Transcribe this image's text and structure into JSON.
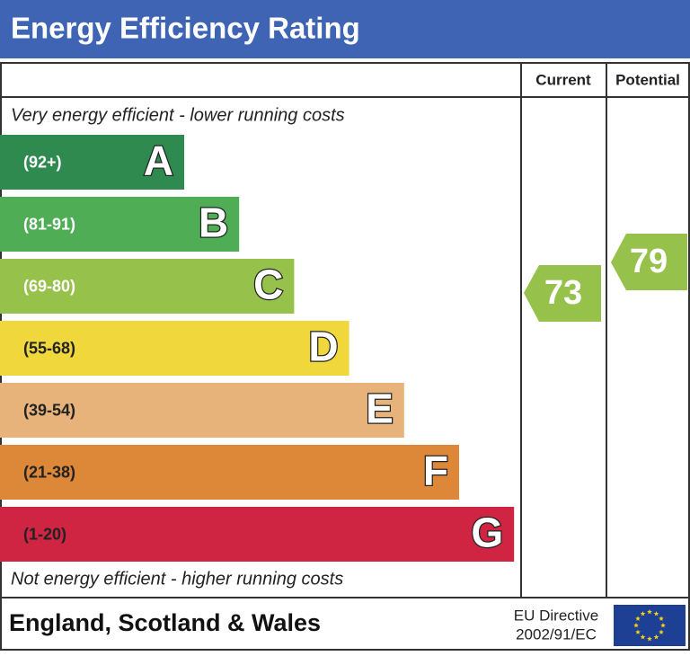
{
  "header": {
    "title": "Energy Efficiency Rating"
  },
  "columns": {
    "current": "Current",
    "potential": "Potential"
  },
  "top_note": "Very energy efficient - lower running costs",
  "bottom_note": "Not energy efficient - higher running costs",
  "bands": [
    {
      "range": "(92+)",
      "letter": "A",
      "color": "#2f8a50"
    },
    {
      "range": "(81-91)",
      "letter": "B",
      "color": "#4fad55"
    },
    {
      "range": "(69-80)",
      "letter": "C",
      "color": "#96c14a"
    },
    {
      "range": "(55-68)",
      "letter": "D",
      "color": "#efd73c"
    },
    {
      "range": "(39-54)",
      "letter": "E",
      "color": "#e8b37a"
    },
    {
      "range": "(21-38)",
      "letter": "F",
      "color": "#dc8838"
    },
    {
      "range": "(1-20)",
      "letter": "G",
      "color": "#cf2442"
    }
  ],
  "current": 73,
  "potential": 79,
  "footer": {
    "region": "England, Scotland & Wales",
    "directive_line1": "EU Directive",
    "directive_line2": "2002/91/EC"
  }
}
